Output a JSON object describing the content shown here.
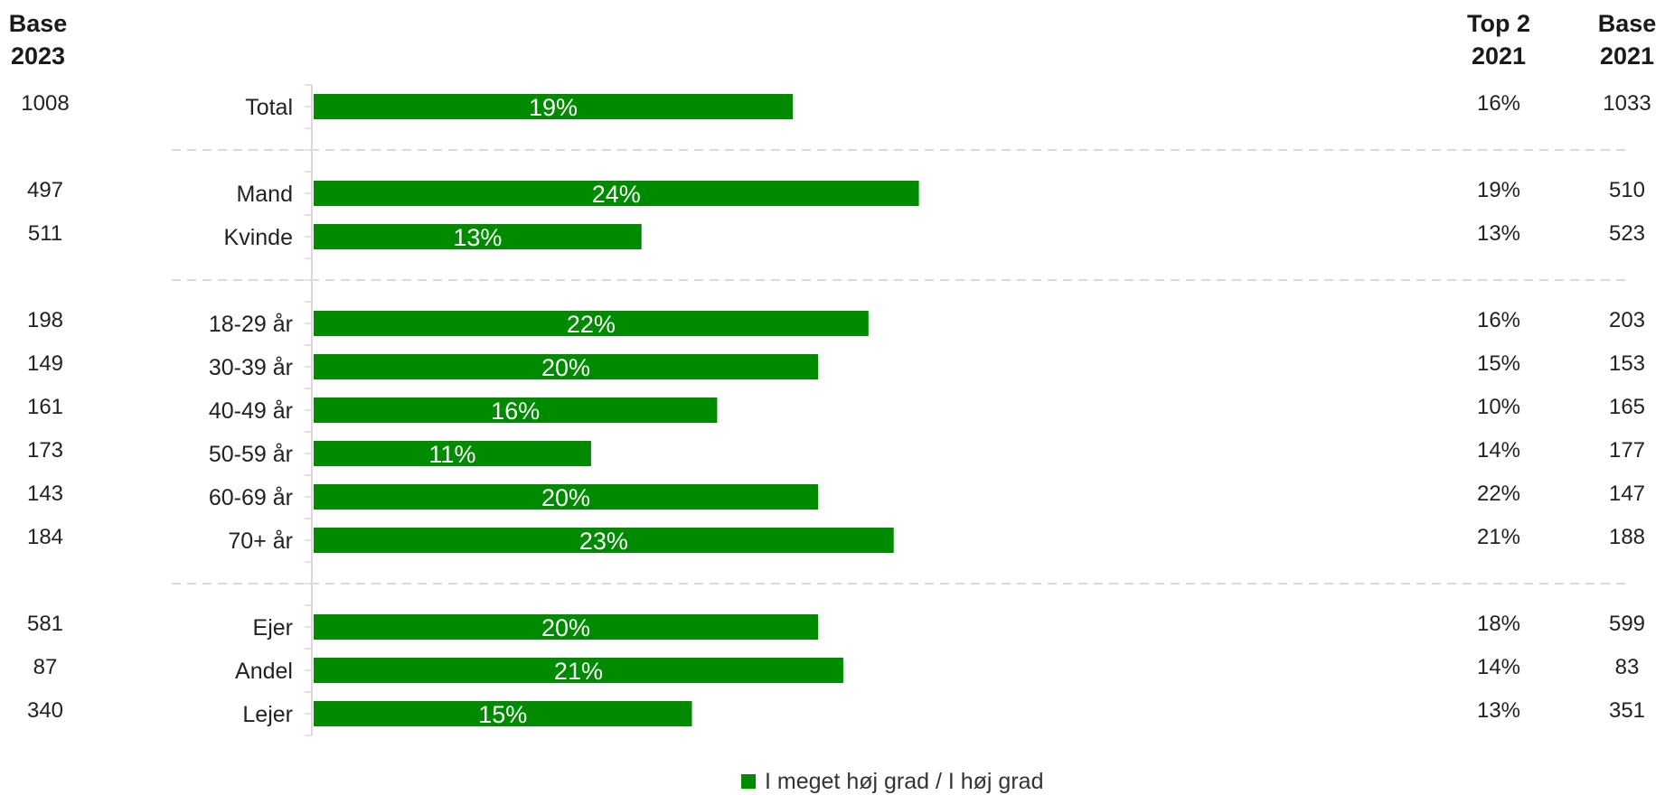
{
  "headers": {
    "base_2023": [
      "Base",
      "2023"
    ],
    "top2_2021": [
      "Top 2",
      "2021"
    ],
    "base_2021": [
      "Base",
      "2021"
    ]
  },
  "colors": {
    "bar": "#008A00",
    "bar_label": "#ffffff",
    "divider": "#d9d9d9",
    "axis": "#d9d9d9"
  },
  "chart_data": {
    "type": "bar",
    "orientation": "horizontal",
    "value_format": "percent",
    "xlim": [
      0,
      30
    ],
    "categories": [
      "Total",
      "Mand",
      "Kvinde",
      "18-29 år",
      "30-39 år",
      "40-49 år",
      "50-59 år",
      "60-69 år",
      "70+ år",
      "Ejer",
      "Andel",
      "Lejer"
    ],
    "groups": [
      [
        0
      ],
      [
        1,
        2
      ],
      [
        3,
        4,
        5,
        6,
        7,
        8
      ],
      [
        9,
        10,
        11
      ]
    ],
    "series": [
      {
        "name": "I meget høj grad / I høj grad",
        "values": [
          19,
          24,
          13,
          22,
          20,
          16,
          11,
          20,
          23,
          20,
          21,
          15
        ]
      }
    ],
    "base_2023": [
      1008,
      497,
      511,
      198,
      149,
      161,
      173,
      143,
      184,
      581,
      87,
      340
    ],
    "top2_2021": [
      "16%",
      "19%",
      "13%",
      "16%",
      "15%",
      "10%",
      "14%",
      "22%",
      "21%",
      "18%",
      "14%",
      "13%"
    ],
    "base_2021": [
      1033,
      510,
      523,
      203,
      153,
      165,
      177,
      147,
      188,
      599,
      83,
      351
    ],
    "legend": {
      "label": "I meget høj grad / I høj grad",
      "position": "bottom"
    }
  }
}
